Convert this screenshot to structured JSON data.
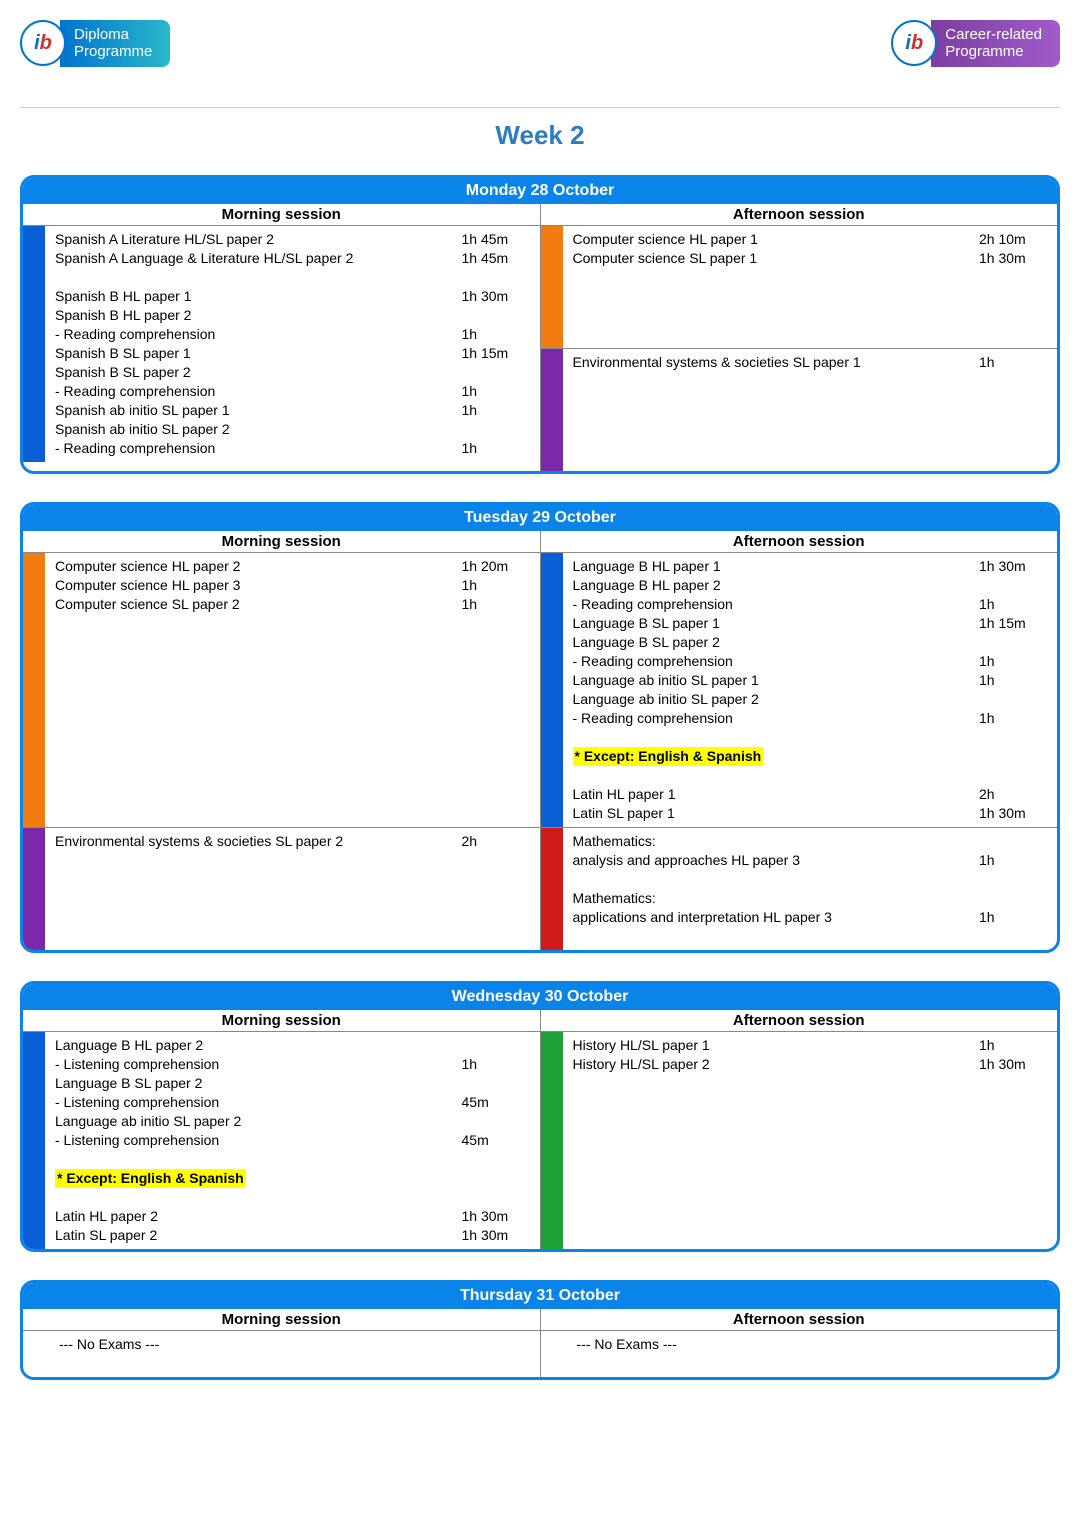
{
  "colors": {
    "brand_blue": "#0a84e8",
    "title_blue": "#2e7bc0",
    "stripe_blue": "#0a5fd6",
    "stripe_orange": "#f07c12",
    "stripe_purple": "#7a2aa8",
    "stripe_green": "#1fa038",
    "stripe_red": "#d11a1a",
    "highlight": "#ffff00"
  },
  "logos": {
    "left": {
      "title1": "Diploma",
      "title2": "Programme"
    },
    "right": {
      "title1": "Career-related",
      "title2": "Programme"
    }
  },
  "page_title": "Week 2",
  "session_labels": {
    "morning": "Morning session",
    "afternoon": "Afternoon session"
  },
  "except_note": "* Except: English & Spanish",
  "no_exams": "--- No Exams ---",
  "days": [
    {
      "header": "Monday 28 October",
      "morning": [
        {
          "stripe": "#0a5fd6",
          "rows": [
            {
              "name": "Spanish A Literature HL/SL paper 2",
              "dur": "1h 45m"
            },
            {
              "name": "Spanish A Language & Literature HL/SL paper 2",
              "dur": "1h 45m"
            },
            {
              "name": "",
              "dur": ""
            },
            {
              "name": "Spanish B HL paper 1",
              "dur": "1h 30m"
            },
            {
              "name": "Spanish B HL paper 2",
              "dur": ""
            },
            {
              "name": "- Reading comprehension",
              "dur": "1h"
            },
            {
              "name": "Spanish B SL paper 1",
              "dur": "1h 15m"
            },
            {
              "name": "Spanish B SL paper 2",
              "dur": ""
            },
            {
              "name": "- Reading comprehension",
              "dur": "1h"
            },
            {
              "name": "Spanish ab initio SL paper 1",
              "dur": "1h"
            },
            {
              "name": "Spanish ab initio SL paper 2",
              "dur": ""
            },
            {
              "name": "- Reading comprehension",
              "dur": "1h"
            }
          ]
        }
      ],
      "afternoon": [
        {
          "stripe": "#f07c12",
          "rows": [
            {
              "name": "Computer science HL paper 1",
              "dur": "2h 10m"
            },
            {
              "name": "Computer science SL paper 1",
              "dur": "1h 30m"
            },
            {
              "name": "",
              "dur": ""
            },
            {
              "name": "",
              "dur": ""
            },
            {
              "name": "",
              "dur": ""
            },
            {
              "name": "",
              "dur": ""
            }
          ]
        },
        {
          "stripe": "#7a2aa8",
          "rows": [
            {
              "name": "Environmental systems & societies SL paper 1",
              "dur": "1h"
            },
            {
              "name": "",
              "dur": ""
            },
            {
              "name": "",
              "dur": ""
            },
            {
              "name": "",
              "dur": ""
            },
            {
              "name": "",
              "dur": ""
            },
            {
              "name": "",
              "dur": ""
            }
          ]
        }
      ]
    },
    {
      "header": "Tuesday 29 October",
      "morning": [
        {
          "stripe": "#f07c12",
          "rows": [
            {
              "name": "Computer science HL paper 2",
              "dur": "1h 20m"
            },
            {
              "name": "Computer science HL paper 3",
              "dur": "1h"
            },
            {
              "name": "Computer science SL paper 2",
              "dur": "1h"
            },
            {
              "name": "",
              "dur": ""
            },
            {
              "name": "",
              "dur": ""
            },
            {
              "name": "",
              "dur": ""
            },
            {
              "name": "",
              "dur": ""
            },
            {
              "name": "",
              "dur": ""
            },
            {
              "name": "",
              "dur": ""
            },
            {
              "name": "",
              "dur": ""
            },
            {
              "name": "",
              "dur": ""
            },
            {
              "name": "",
              "dur": ""
            },
            {
              "name": "",
              "dur": ""
            },
            {
              "name": "",
              "dur": ""
            }
          ]
        },
        {
          "stripe": "#7a2aa8",
          "rows": [
            {
              "name": "Environmental systems & societies SL paper 2",
              "dur": "2h"
            },
            {
              "name": "",
              "dur": ""
            },
            {
              "name": "",
              "dur": ""
            },
            {
              "name": "",
              "dur": ""
            },
            {
              "name": "",
              "dur": ""
            },
            {
              "name": "",
              "dur": ""
            }
          ]
        }
      ],
      "afternoon": [
        {
          "stripe": "#0a5fd6",
          "rows": [
            {
              "name": "Language B HL paper 1",
              "dur": "1h 30m"
            },
            {
              "name": "Language B HL paper 2",
              "dur": ""
            },
            {
              "name": "- Reading comprehension",
              "dur": "1h"
            },
            {
              "name": "Language B SL paper 1",
              "dur": "1h 15m"
            },
            {
              "name": "Language B SL paper 2",
              "dur": ""
            },
            {
              "name": "- Reading comprehension",
              "dur": "1h"
            },
            {
              "name": "Language ab initio SL paper 1",
              "dur": "1h"
            },
            {
              "name": "Language ab initio SL paper 2",
              "dur": ""
            },
            {
              "name": "- Reading comprehension",
              "dur": "1h"
            },
            {
              "name": "",
              "dur": ""
            },
            {
              "name": "__EXCEPT__",
              "dur": ""
            },
            {
              "name": "",
              "dur": ""
            },
            {
              "name": "Latin HL paper 1",
              "dur": "2h"
            },
            {
              "name": "Latin SL paper 1",
              "dur": "1h 30m"
            }
          ]
        },
        {
          "stripe": "#d11a1a",
          "rows": [
            {
              "name": "Mathematics:",
              "dur": ""
            },
            {
              "name": "analysis and approaches HL paper 3",
              "dur": "1h"
            },
            {
              "name": "",
              "dur": ""
            },
            {
              "name": "Mathematics:",
              "dur": ""
            },
            {
              "name": "applications and interpretation HL paper 3",
              "dur": "1h"
            },
            {
              "name": "",
              "dur": ""
            }
          ]
        }
      ]
    },
    {
      "header": "Wednesday 30 October",
      "morning": [
        {
          "stripe": "#0a5fd6",
          "rows": [
            {
              "name": "Language B HL paper 2",
              "dur": ""
            },
            {
              "name": "- Listening comprehension",
              "dur": "1h"
            },
            {
              "name": "Language B SL paper 2",
              "dur": ""
            },
            {
              "name": "- Listening comprehension",
              "dur": "45m"
            },
            {
              "name": "Language ab initio SL paper 2",
              "dur": ""
            },
            {
              "name": "- Listening comprehension",
              "dur": "45m"
            },
            {
              "name": "",
              "dur": ""
            },
            {
              "name": "__EXCEPT__",
              "dur": ""
            },
            {
              "name": "",
              "dur": ""
            },
            {
              "name": "Latin HL paper 2",
              "dur": "1h 30m"
            },
            {
              "name": "Latin SL paper 2",
              "dur": "1h 30m"
            }
          ]
        }
      ],
      "afternoon": [
        {
          "stripe": "#1fa038",
          "rows": [
            {
              "name": "History HL/SL paper 1",
              "dur": "1h"
            },
            {
              "name": "History HL/SL paper 2",
              "dur": "1h 30m"
            },
            {
              "name": "",
              "dur": ""
            },
            {
              "name": "",
              "dur": ""
            },
            {
              "name": "",
              "dur": ""
            },
            {
              "name": "",
              "dur": ""
            },
            {
              "name": "",
              "dur": ""
            },
            {
              "name": "",
              "dur": ""
            },
            {
              "name": "",
              "dur": ""
            },
            {
              "name": "",
              "dur": ""
            },
            {
              "name": "",
              "dur": ""
            }
          ]
        }
      ]
    },
    {
      "header": "Thursday 31 October",
      "morning": [
        {
          "stripe": "#ffffff",
          "rows": [
            {
              "name": "__NOEXAMS__",
              "dur": ""
            },
            {
              "name": "",
              "dur": ""
            }
          ]
        }
      ],
      "afternoon": [
        {
          "stripe": "#ffffff",
          "rows": [
            {
              "name": "__NOEXAMS__",
              "dur": ""
            },
            {
              "name": "",
              "dur": ""
            }
          ]
        }
      ]
    }
  ]
}
